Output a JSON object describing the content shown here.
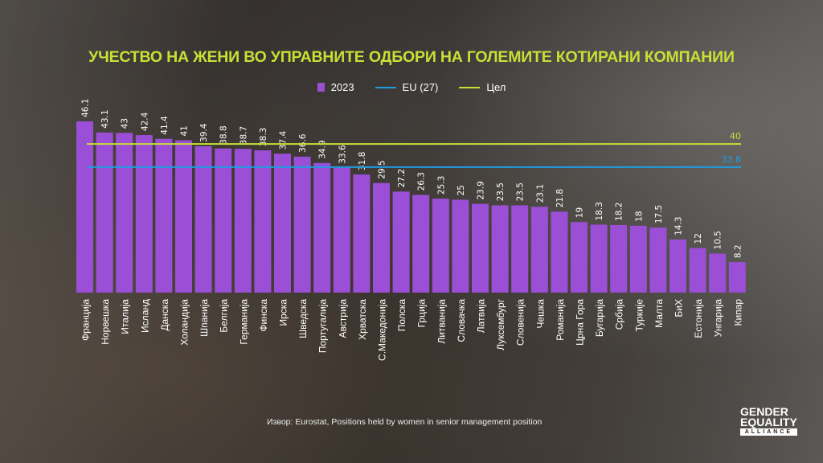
{
  "chart_data": {
    "type": "bar",
    "title": "УЧЕСТВО НА ЖЕНИ ВО УПРАВНИТЕ ОДБОРИ НА ГОЛЕМИТЕ КОТИРАНИ КОМПАНИИ",
    "categories": [
      "Франција",
      "Норвешка",
      "Италија",
      "Исланд",
      "Данска",
      "Холандија",
      "Шпанија",
      "Белгија",
      "Германија",
      "Финска",
      "Ирска",
      "Шведска",
      "Португалија",
      "Австрија",
      "Хрватска",
      "С.Македонија",
      "Полска",
      "Грција",
      "Литванија",
      "Словачка",
      "Латвија",
      "Луксембург",
      "Словенија",
      "Чешка",
      "Романија",
      "Црна Гора",
      "Бугарија",
      "Србија",
      "Туркије",
      "Малта",
      "БиХ",
      "Естонија",
      "Унгарија",
      "Кипар"
    ],
    "series": [
      {
        "name": "2023",
        "color": "#9b4fd6",
        "values": [
          46.1,
          43.1,
          43,
          42.4,
          41.4,
          41,
          39.4,
          38.8,
          38.7,
          38.3,
          37.4,
          36.6,
          34.9,
          33.6,
          31.8,
          29.5,
          27.2,
          26.3,
          25.3,
          25,
          23.9,
          23.5,
          23.5,
          23.1,
          21.8,
          19,
          18.3,
          18.2,
          18,
          17.5,
          14.3,
          12,
          10.5,
          8.2
        ]
      }
    ],
    "reference_lines": [
      {
        "name": "EU (27)",
        "value": 33.8,
        "label": "33.8",
        "color": "#1f9de0"
      },
      {
        "name": "Цел",
        "value": 40,
        "label": "40",
        "color": "#c7e036"
      }
    ],
    "ylim": [
      0,
      46.1
    ],
    "grid": false,
    "legend": "top-center",
    "xlabel": "",
    "ylabel": ""
  },
  "source": "Извор: Eurostat, Positions held by women in senior management position",
  "logo": {
    "line1": "GENDER",
    "line2": "EQUALITY",
    "line3": "ALLIANCE"
  }
}
